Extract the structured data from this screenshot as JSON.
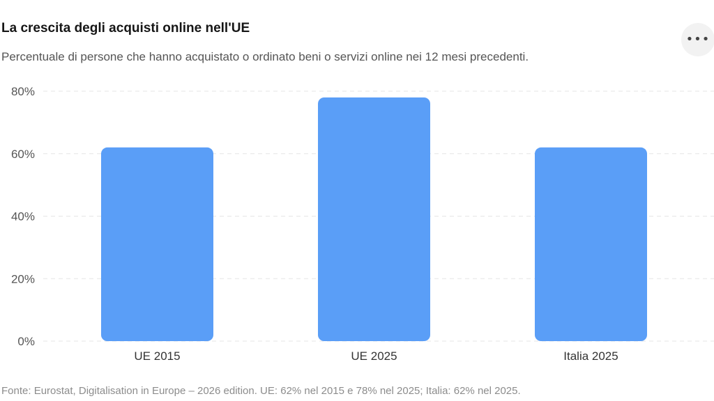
{
  "header": {
    "title": "La crescita degli acquisti online nell'UE",
    "subtitle": "Percentuale di persone che hanno acquistato o ordinato beni o servizi online nei 12 mesi precedenti.",
    "more_icon": "more-horizontal-icon"
  },
  "footer": {
    "source": "Fonte: Eurostat, Digitalisation in Europe – 2026 edition. UE: 62% nel 2015 e 78% nel 2025; Italia: 62% nel 2025."
  },
  "colors": {
    "bar": "#5A9EF7",
    "grid": "#e6e6e6",
    "tick_text": "#555555",
    "category_text": "#333333"
  },
  "chart_data": {
    "type": "bar",
    "categories": [
      "UE 2015",
      "UE 2025",
      "Italia 2025"
    ],
    "values": [
      62,
      78,
      62
    ],
    "unit": "%",
    "ylim": [
      0,
      80
    ],
    "yticks": [
      0,
      20,
      40,
      60,
      80
    ],
    "ytick_labels": [
      "0%",
      "20%",
      "40%",
      "60%",
      "80%"
    ],
    "grid": true,
    "grid_style": "dashed",
    "legend": "none"
  }
}
